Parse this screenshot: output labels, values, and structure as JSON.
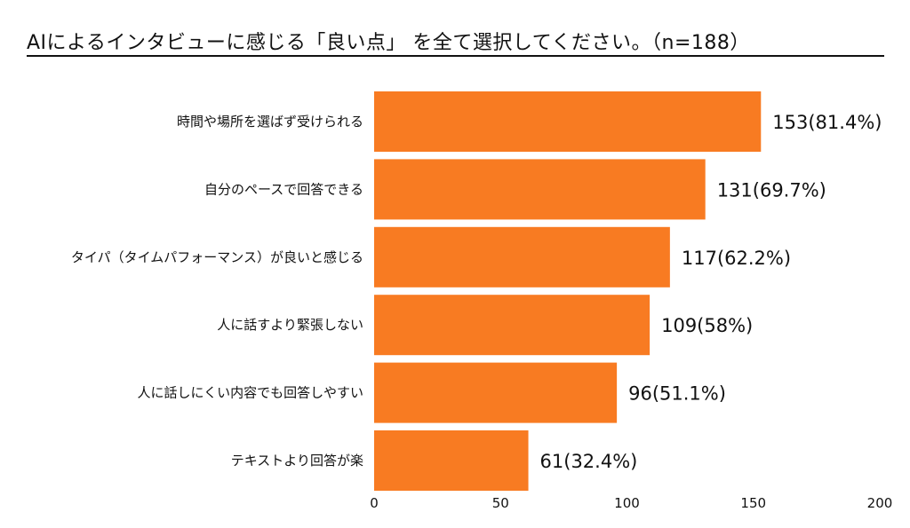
{
  "chart_data": {
    "type": "bar",
    "orientation": "horizontal",
    "title": "AIによるインタビューに感じる「良い点」 を全て選択してください。（n=188）",
    "categories": [
      "時間や場所を選ばず受けられる",
      "自分のペースで回答できる",
      "タイパ（タイムパフォーマンス）が良いと感じる",
      "人に話すより緊張しない",
      "人に話しにくい内容でも回答しやすい",
      "テキストより回答が楽"
    ],
    "values": [
      153,
      131,
      117,
      109,
      96,
      61
    ],
    "data_labels": [
      "153(81.4%)",
      "131(69.7%)",
      "117(62.2%)",
      "109(58%)",
      "96(51.1%)",
      "61(32.4%)"
    ],
    "xlim": [
      0,
      200
    ],
    "xticks": [
      "0",
      "50",
      "100",
      "150",
      "200"
    ],
    "grid": false,
    "legend": "none",
    "bar_color": "#F87B22"
  }
}
